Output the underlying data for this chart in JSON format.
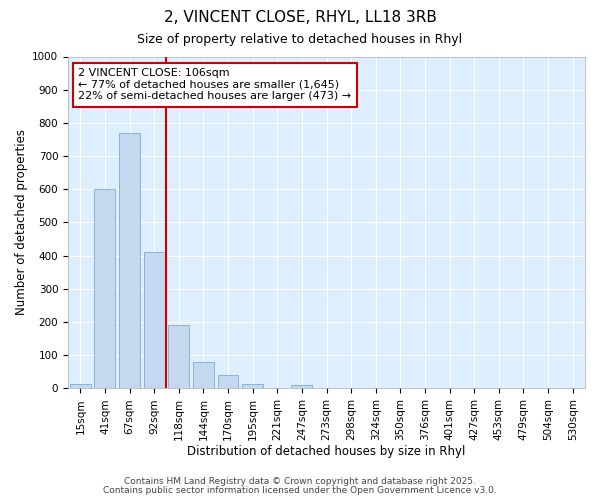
{
  "title_line1": "2, VINCENT CLOSE, RHYL, LL18 3RB",
  "title_line2": "Size of property relative to detached houses in Rhyl",
  "xlabel": "Distribution of detached houses by size in Rhyl",
  "ylabel": "Number of detached properties",
  "bar_labels": [
    "15sqm",
    "41sqm",
    "67sqm",
    "92sqm",
    "118sqm",
    "144sqm",
    "170sqm",
    "195sqm",
    "221sqm",
    "247sqm",
    "273sqm",
    "298sqm",
    "324sqm",
    "350sqm",
    "376sqm",
    "401sqm",
    "427sqm",
    "453sqm",
    "479sqm",
    "504sqm",
    "530sqm"
  ],
  "bar_values": [
    15,
    600,
    770,
    410,
    190,
    80,
    40,
    15,
    0,
    12,
    0,
    0,
    0,
    0,
    0,
    0,
    0,
    0,
    0,
    0,
    0
  ],
  "bar_color": "#c5d8f0",
  "bar_edgecolor": "#7badd4",
  "plot_bg_color": "#ddeeff",
  "fig_bg_color": "#ffffff",
  "grid_color": "#ffffff",
  "vline_x": 3.5,
  "vline_color": "#cc0000",
  "annotation_text": "2 VINCENT CLOSE: 106sqm\n← 77% of detached houses are smaller (1,645)\n22% of semi-detached houses are larger (473) →",
  "annotation_box_facecolor": "#ffffff",
  "annotation_box_edgecolor": "#cc0000",
  "ylim": [
    0,
    1000
  ],
  "yticks": [
    0,
    100,
    200,
    300,
    400,
    500,
    600,
    700,
    800,
    900,
    1000
  ],
  "footer_line1": "Contains HM Land Registry data © Crown copyright and database right 2025.",
  "footer_line2": "Contains public sector information licensed under the Open Government Licence v3.0.",
  "title_fontsize": 11,
  "subtitle_fontsize": 9,
  "tick_fontsize": 7.5,
  "axis_label_fontsize": 8.5,
  "annotation_fontsize": 8,
  "footer_fontsize": 6.5
}
